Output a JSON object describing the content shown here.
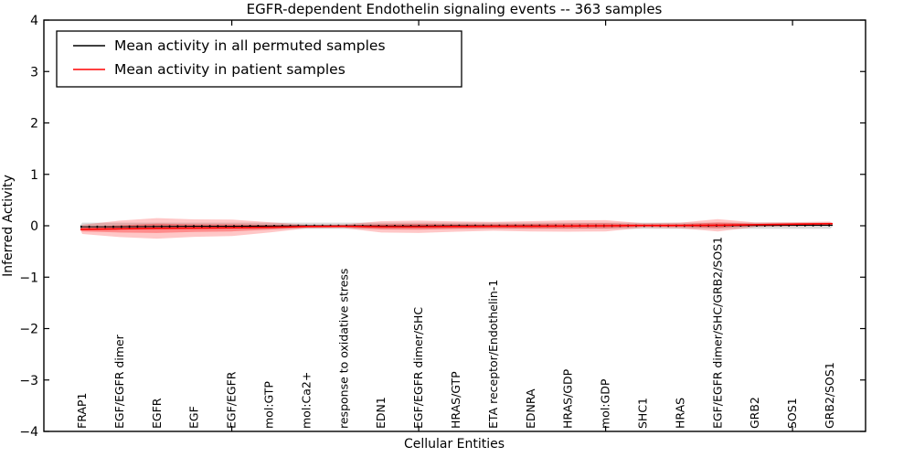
{
  "chart_data": {
    "type": "area",
    "title": "EGFR-dependent Endothelin signaling events -- 363 samples",
    "xlabel": "Cellular Entities",
    "ylabel": "Inferred Activity",
    "ylim": [
      -4,
      4
    ],
    "yticks": [
      -4,
      -3,
      -2,
      -1,
      0,
      1,
      2,
      3,
      4
    ],
    "ytick_labels": [
      "−4",
      "−3",
      "−2",
      "−1",
      "0",
      "1",
      "2",
      "3",
      "4"
    ],
    "x_major_tick_indices": [
      5,
      10,
      15,
      20
    ],
    "grid": false,
    "legend_position": "upper-left",
    "categories": [
      "FRAP1",
      "EGF/EGFR dimer",
      "EGFR",
      "EGF",
      "EGF/EGFR",
      "mol:GTP",
      "mol:Ca2+",
      "response to oxidative stress",
      "EDN1",
      "EGF/EGFR dimer/SHC",
      "HRAS/GTP",
      "ETA receptor/Endothelin-1",
      "EDNRA",
      "HRAS/GDP",
      "mol:GDP",
      "SHC1",
      "HRAS",
      "EGF/EGFR dimer/SHC/GRB2/SOS1",
      "GRB2",
      "SOS1",
      "GRB2/SOS1"
    ],
    "legend": [
      {
        "label": "Mean activity in all permuted samples",
        "color": "#000000"
      },
      {
        "label": "Mean activity in patient samples",
        "color": "#ff0000"
      }
    ],
    "series": [
      {
        "name": "Mean activity in all permuted samples",
        "type": "line",
        "color": "#000000",
        "values": [
          -0.02,
          -0.02,
          -0.015,
          -0.01,
          -0.01,
          -0.005,
          0,
          0,
          -0.005,
          -0.005,
          0,
          0,
          0,
          0,
          0,
          0,
          0,
          0.005,
          0.005,
          0.01,
          0.01
        ]
      },
      {
        "name": "Mean activity in patient samples",
        "type": "line",
        "color": "#ff0000",
        "values": [
          -0.07,
          -0.06,
          -0.05,
          -0.045,
          -0.04,
          -0.03,
          -0.015,
          -0.01,
          -0.02,
          -0.02,
          -0.015,
          -0.01,
          -0.01,
          -0.005,
          0,
          0.005,
          0.005,
          0.01,
          0.02,
          0.03,
          0.04
        ]
      },
      {
        "name": "Permuted samples spread halfwidth",
        "type": "band",
        "color": "#bcbcbc",
        "opacity": 0.55,
        "center": "zero",
        "values": [
          0.06,
          0.06,
          0.06,
          0.06,
          0.06,
          0.06,
          0.06,
          0.06,
          0.06,
          0.06,
          0.06,
          0.06,
          0.06,
          0.06,
          0.06,
          0.06,
          0.06,
          0.06,
          0.06,
          0.06,
          0.06
        ]
      },
      {
        "name": "Patient samples spread outer halfwidth",
        "type": "band",
        "color": "#ff0000",
        "opacity": 0.22,
        "center": "patient-mean",
        "values": [
          0.09,
          0.16,
          0.2,
          0.17,
          0.16,
          0.1,
          0.035,
          0.035,
          0.11,
          0.12,
          0.1,
          0.085,
          0.1,
          0.11,
          0.11,
          0.045,
          0.055,
          0.12,
          0.045,
          0.04,
          0.04
        ]
      },
      {
        "name": "Patient samples spread inner halfwidth",
        "type": "band",
        "color": "#ff0000",
        "opacity": 0.3,
        "center": "patient-mean",
        "values": [
          0.04,
          0.07,
          0.09,
          0.075,
          0.07,
          0.045,
          0.018,
          0.018,
          0.05,
          0.055,
          0.045,
          0.04,
          0.045,
          0.05,
          0.05,
          0.02,
          0.025,
          0.055,
          0.02,
          0.018,
          0.018
        ]
      }
    ],
    "colors": {
      "permuted_line": "#000000",
      "patient_line": "#ff0000",
      "permuted_band": "#bcbcbc",
      "patient_band": "#ff0000",
      "spine": "#000000",
      "background": "#ffffff"
    }
  }
}
